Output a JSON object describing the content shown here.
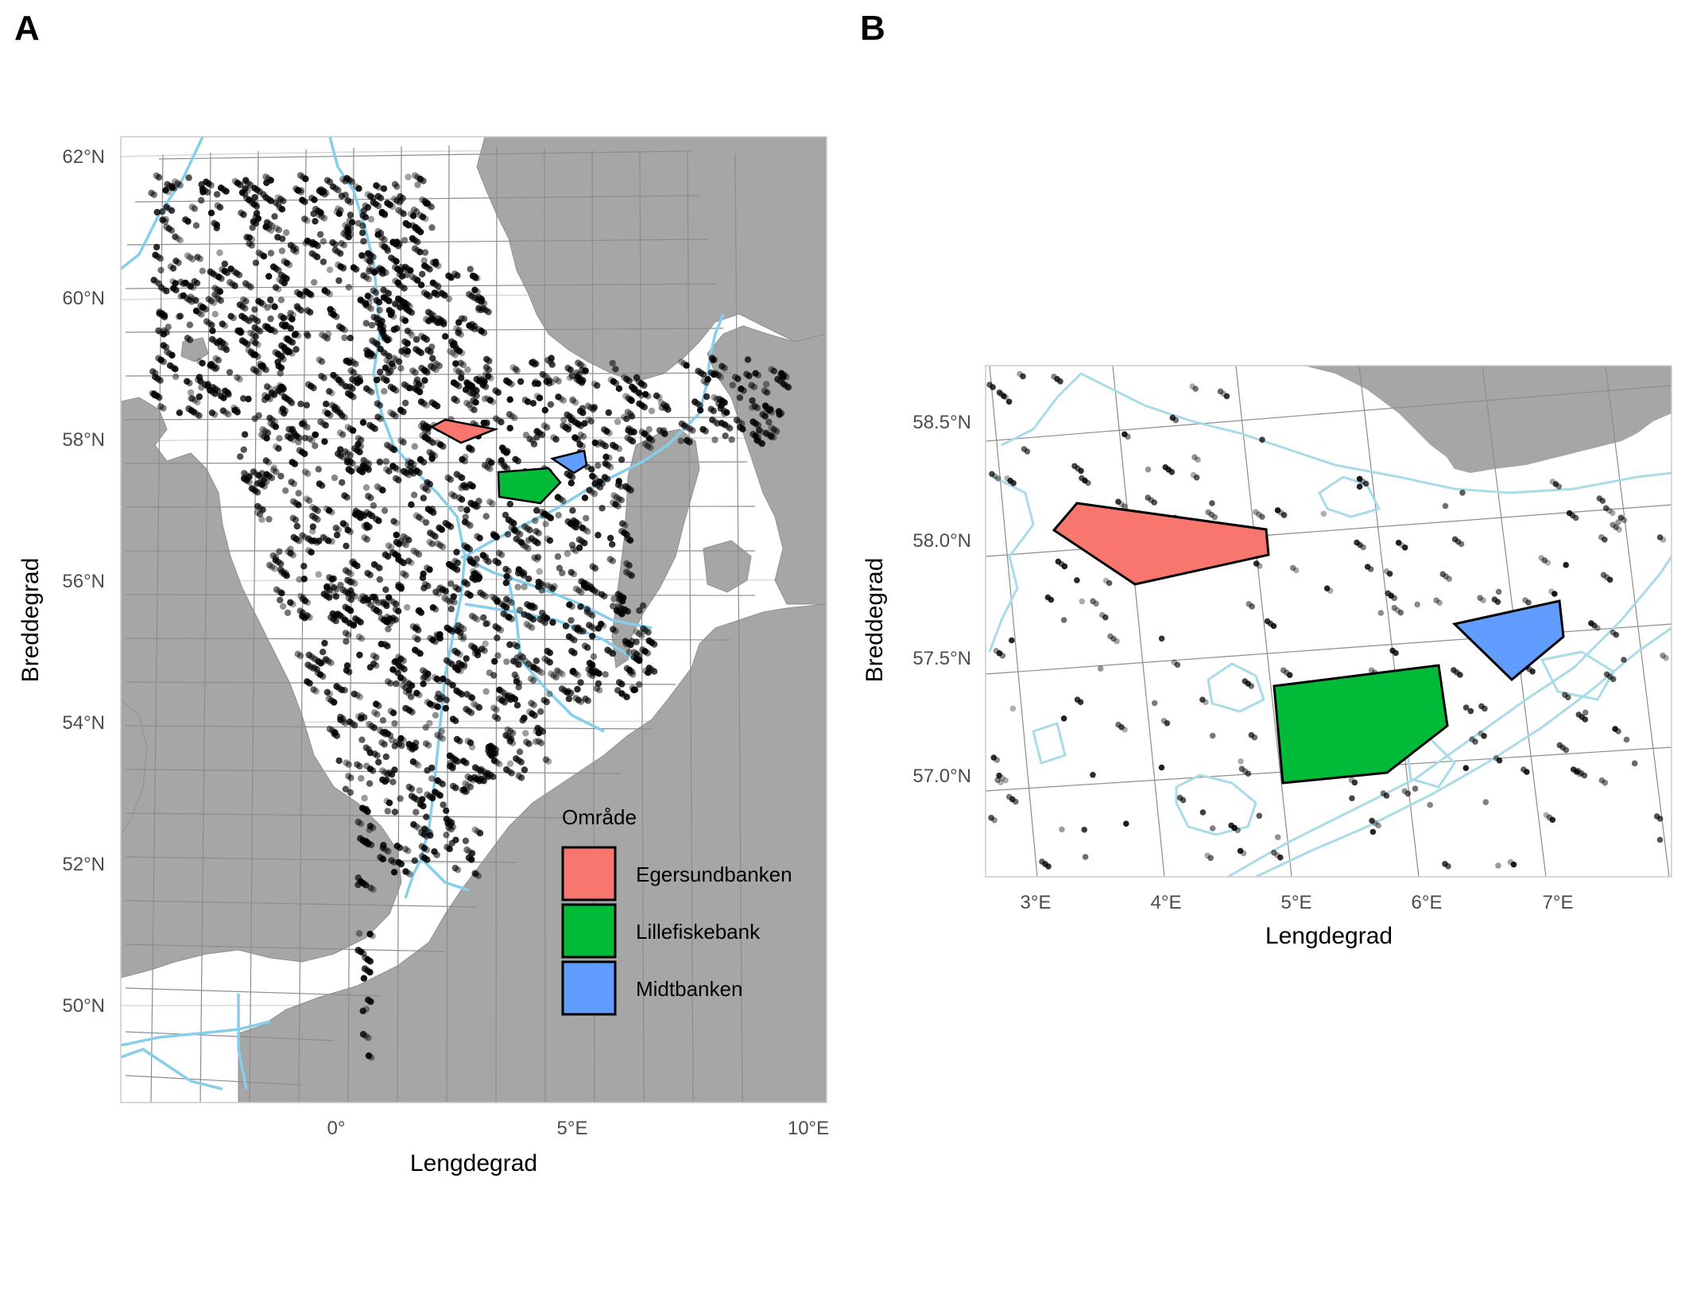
{
  "colors": {
    "land": "#a6a6a6",
    "sea": "#ffffff",
    "grid": "#8c8c8c",
    "graticule": "#d9d9d9",
    "depth_contour": "#87ceeb",
    "depth_contour_light": "#a9dbe8",
    "points": "#000000",
    "axis_text": "#4d4d4d",
    "egersundbanken": "#f8766d",
    "lillefiskebank": "#00ba38",
    "midtbanken": "#619cff"
  },
  "panels": {
    "A": {
      "tag": "A",
      "xlabel": "Lengdegrad",
      "ylabel": "Breddegrad",
      "x_ticks": [
        "0°",
        "5°E",
        "10°E"
      ],
      "y_ticks": [
        "62°N",
        "60°N",
        "58°N",
        "56°N",
        "54°N",
        "52°N",
        "50°N"
      ]
    },
    "B": {
      "tag": "B",
      "xlabel": "Lengdegrad",
      "ylabel": "Breddegrad",
      "x_ticks": [
        "3°E",
        "4°E",
        "5°E",
        "6°E",
        "7°E"
      ],
      "y_ticks": [
        "58.5°N",
        "58.0°N",
        "57.5°N",
        "57.0°N"
      ]
    }
  },
  "legend": {
    "title": "Område",
    "items": [
      {
        "label": "Egersundbanken",
        "color_key": "egersundbanken"
      },
      {
        "label": "Lillefiskebank",
        "color_key": "lillefiskebank"
      },
      {
        "label": "Midtbanken",
        "color_key": "midtbanken"
      }
    ]
  },
  "map_data": {
    "panel_A_extent": {
      "lon": [
        -4.5,
        10.4
      ],
      "lat": [
        48.7,
        62.3
      ]
    },
    "panel_B_extent": {
      "lon": [
        2.6,
        7.85
      ],
      "lat": [
        56.6,
        58.75
      ]
    },
    "areas": [
      {
        "name": "Egersundbanken",
        "color_key": "egersundbanken",
        "polygon": [
          [
            3.15,
            58.03
          ],
          [
            3.33,
            58.16
          ],
          [
            4.78,
            58.04
          ],
          [
            4.8,
            57.96
          ],
          [
            3.78,
            57.81
          ]
        ]
      },
      {
        "name": "Lillefiskebank",
        "color_key": "lillefiskebank",
        "polygon": [
          [
            4.82,
            57.37
          ],
          [
            6.12,
            57.46
          ],
          [
            6.18,
            57.2
          ],
          [
            5.7,
            57.0
          ],
          [
            4.9,
            56.96
          ]
        ]
      },
      {
        "name": "Midtbanken",
        "color_key": "midtbanken",
        "polygon": [
          [
            6.25,
            57.65
          ],
          [
            7.0,
            57.74
          ],
          [
            7.05,
            57.6
          ],
          [
            6.62,
            57.4
          ]
        ]
      }
    ]
  }
}
